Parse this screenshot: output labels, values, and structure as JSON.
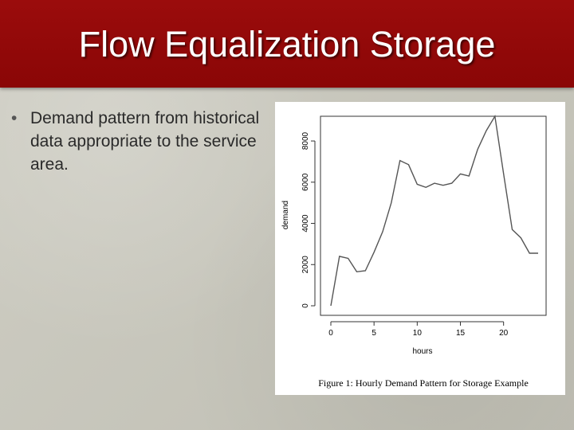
{
  "slide": {
    "title": "Flow Equalization Storage",
    "bullets": [
      "Demand pattern from historical data appropriate to the service area."
    ]
  },
  "colors": {
    "title_bar": "#940909",
    "title_text": "#ffffff",
    "background": "#c8c7bd",
    "series_line": "#555555"
  },
  "chart_data": {
    "type": "line",
    "caption": "Figure 1:  Hourly Demand Pattern for Storage Example",
    "xlabel": "hours",
    "ylabel": "demand",
    "xlim": [
      0,
      24
    ],
    "ylim": [
      0,
      9200
    ],
    "xticks": [
      0,
      5,
      10,
      15,
      20
    ],
    "yticks": [
      0,
      2000,
      4000,
      6000,
      8000
    ],
    "grid": false,
    "x": [
      0,
      1,
      2,
      3,
      4,
      5,
      6,
      7,
      8,
      9,
      10,
      11,
      12,
      13,
      14,
      15,
      16,
      17,
      18,
      19,
      20,
      21,
      22,
      23,
      24
    ],
    "values": [
      0,
      2400,
      2300,
      1650,
      1700,
      2600,
      3600,
      5000,
      7050,
      6850,
      5900,
      5750,
      5950,
      5850,
      5950,
      6400,
      6300,
      7600,
      8500,
      9200,
      6400,
      3700,
      3300,
      2550,
      2550
    ]
  }
}
